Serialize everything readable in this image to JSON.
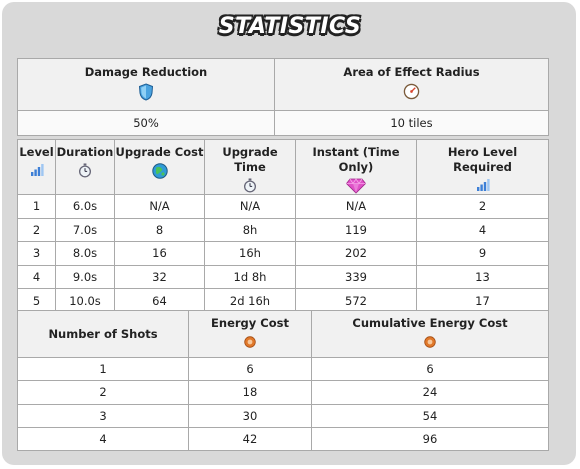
{
  "title": "STATISTICS",
  "summary": {
    "headers": [
      {
        "label": "Damage Reduction",
        "icon": "shield-icon"
      },
      {
        "label": "Area of Effect Radius",
        "icon": "radius-icon"
      }
    ],
    "values": [
      "50%",
      "10 tiles"
    ]
  },
  "levels": {
    "headers": [
      {
        "label": "Level",
        "icon": "bars-icon"
      },
      {
        "label": "Duration",
        "icon": "stopwatch-icon"
      },
      {
        "label": "Upgrade Cost",
        "icon": "energy-orb-icon"
      },
      {
        "label": "Upgrade Time",
        "icon": "stopwatch-icon"
      },
      {
        "label": "Instant (Time Only)",
        "icon": "gem-icon"
      },
      {
        "label": "Hero Level Required",
        "icon": "bars-icon"
      }
    ],
    "rows": [
      [
        "1",
        "6.0s",
        "N/A",
        "N/A",
        "N/A",
        "2"
      ],
      [
        "2",
        "7.0s",
        "8",
        "8h",
        "119",
        "4"
      ],
      [
        "3",
        "8.0s",
        "16",
        "16h",
        "202",
        "9"
      ],
      [
        "4",
        "9.0s",
        "32",
        "1d 8h",
        "339",
        "13"
      ],
      [
        "5",
        "10.0s",
        "64",
        "2d 16h",
        "572",
        "17"
      ]
    ]
  },
  "shots": {
    "headers": [
      {
        "label": "Number of Shots"
      },
      {
        "label": "Energy Cost",
        "icon": "energy-icon"
      },
      {
        "label": "Cumulative Energy Cost",
        "icon": "energy-icon"
      }
    ],
    "rows": [
      [
        "1",
        "6",
        "6"
      ],
      [
        "2",
        "18",
        "24"
      ],
      [
        "3",
        "30",
        "54"
      ],
      [
        "4",
        "42",
        "96"
      ]
    ]
  },
  "colors": {
    "panel": "#d9d9d9",
    "shield": "#4aa3e0",
    "gem": "#e052c8",
    "energy": "#e0782a",
    "bars": "#3d7fd6"
  }
}
